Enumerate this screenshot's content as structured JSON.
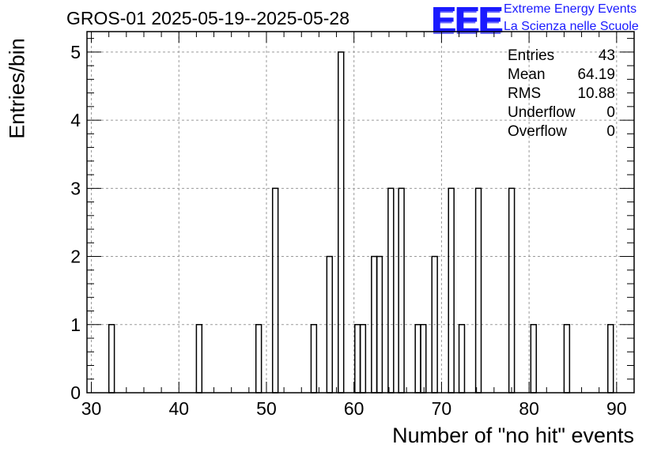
{
  "chart_data": {
    "type": "bar",
    "title": "GROS-01 2025-05-19--2025-05-28",
    "xlabel": "Number of \"no hit\" events",
    "ylabel": "Entries/bin",
    "xlim": [
      29.5,
      92
    ],
    "ylim": [
      0,
      5.3
    ],
    "bin_width": 0.625,
    "x_ticks": [
      "30",
      "40",
      "50",
      "60",
      "70",
      "80",
      "90"
    ],
    "y_ticks": [
      "0",
      "1",
      "2",
      "3",
      "4",
      "5"
    ],
    "grid": true,
    "bins": [
      {
        "x": 32.0,
        "value": 1
      },
      {
        "x": 42.0,
        "value": 1
      },
      {
        "x": 48.8,
        "value": 1
      },
      {
        "x": 50.7,
        "value": 3
      },
      {
        "x": 55.1,
        "value": 1
      },
      {
        "x": 56.9,
        "value": 2
      },
      {
        "x": 58.2,
        "value": 5
      },
      {
        "x": 60.1,
        "value": 1
      },
      {
        "x": 60.7,
        "value": 1
      },
      {
        "x": 62.0,
        "value": 2
      },
      {
        "x": 62.6,
        "value": 2
      },
      {
        "x": 63.9,
        "value": 3
      },
      {
        "x": 65.1,
        "value": 3
      },
      {
        "x": 67.0,
        "value": 1
      },
      {
        "x": 67.6,
        "value": 1
      },
      {
        "x": 68.9,
        "value": 2
      },
      {
        "x": 70.8,
        "value": 3
      },
      {
        "x": 72.0,
        "value": 1
      },
      {
        "x": 73.9,
        "value": 3
      },
      {
        "x": 77.7,
        "value": 3
      },
      {
        "x": 80.2,
        "value": 1
      },
      {
        "x": 84.0,
        "value": 1
      },
      {
        "x": 89.0,
        "value": 1
      }
    ]
  },
  "stats": [
    {
      "label": "Entries",
      "value": "43"
    },
    {
      "label": "Mean",
      "value": "64.19"
    },
    {
      "label": "RMS",
      "value": "10.88"
    },
    {
      "label": "Underflow",
      "value": "0"
    },
    {
      "label": "Overflow",
      "value": "0"
    }
  ],
  "logo": {
    "mark": "EEE",
    "line1": "Extreme Energy Events",
    "line2": "La Scienza nelle Scuole",
    "color": "#1a1aff"
  }
}
